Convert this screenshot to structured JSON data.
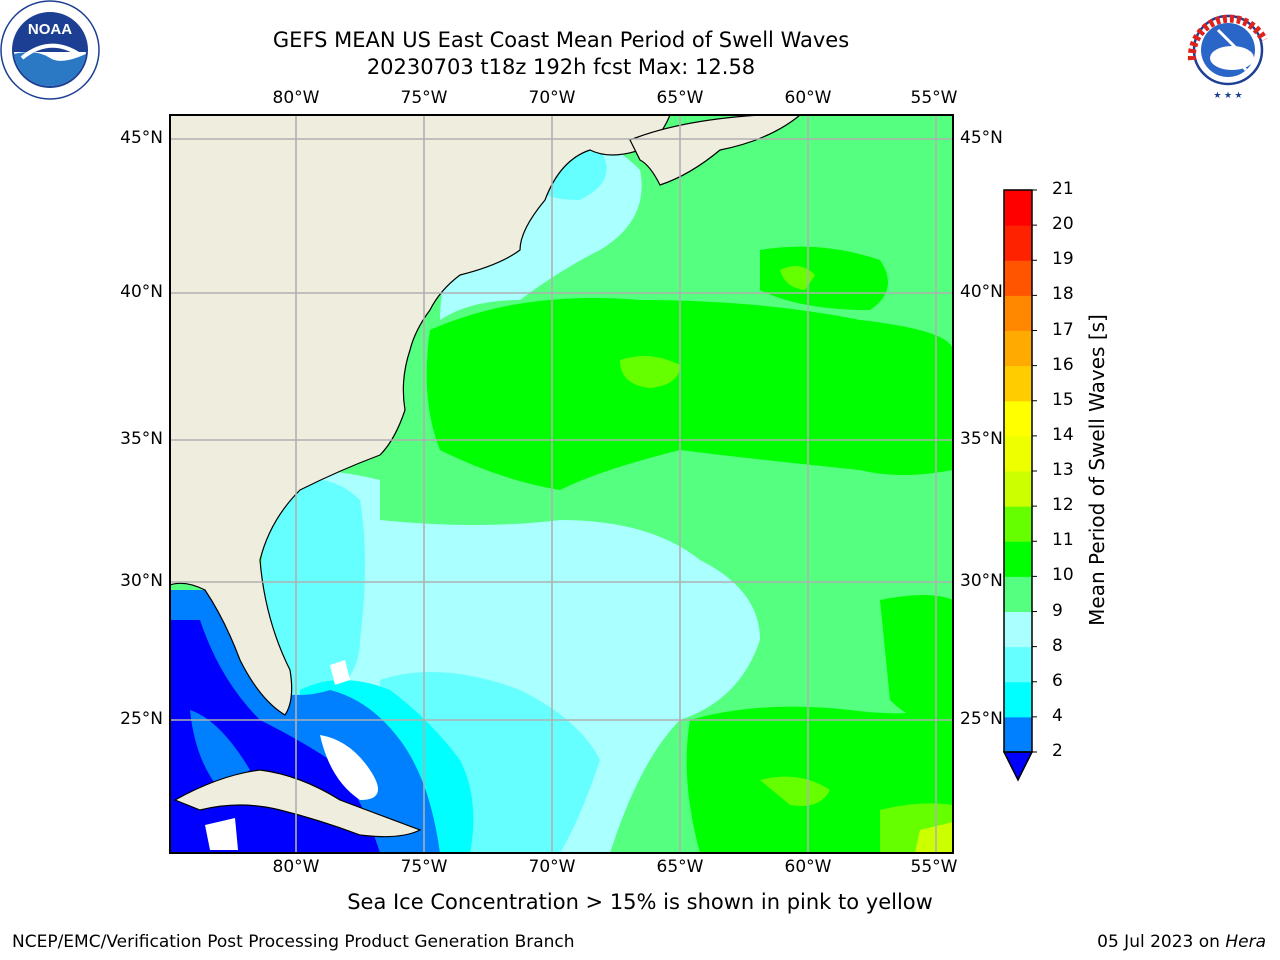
{
  "header": {
    "title_line1": "GEFS MEAN US East Coast Mean Period of Swell Waves",
    "title_line2": "20230703 t18z 192h fcst   Max: 12.58"
  },
  "logos": {
    "left": "noaa-logo",
    "right": "national-weather-service-logo",
    "left_text": [
      "NOAA",
      "NATIONAL OCEANIC AND ATMOSPHERIC ADMINISTRATION",
      "U.S. DEPARTMENT OF COMMERCE"
    ],
    "right_text": "NATIONAL WEATHER SERVICE"
  },
  "map": {
    "lon_labels": [
      "80°W",
      "75°W",
      "70°W",
      "65°W",
      "60°W",
      "55°W"
    ],
    "lat_labels": [
      "45°N",
      "40°N",
      "35°N",
      "30°N",
      "25°N"
    ],
    "land_color": "#efeddd",
    "grid_color": "#b0b0b0"
  },
  "colorbar": {
    "title": "Mean Period of Swell Waves [s]",
    "levels": [
      "2",
      "4",
      "6",
      "8",
      "9",
      "10",
      "11",
      "12",
      "13",
      "14",
      "15",
      "16",
      "17",
      "18",
      "19",
      "20",
      "21"
    ],
    "colors": [
      "#0000ff",
      "#0080ff",
      "#00ffff",
      "#66ffff",
      "#aaffff",
      "#55ff80",
      "#00ff00",
      "#66ff00",
      "#ccff00",
      "#eeff00",
      "#ffff00",
      "#ffcc00",
      "#ffaa00",
      "#ff8800",
      "#ff5500",
      "#ff2200",
      "#ff0000"
    ],
    "extend": "min"
  },
  "footer": {
    "note": "Sea Ice Concentration > 15% is shown in pink to yellow",
    "left": "NCEP/EMC/Verification Post Processing Product Generation Branch",
    "date": "05 Jul 2023 on ",
    "host": "Hera"
  }
}
